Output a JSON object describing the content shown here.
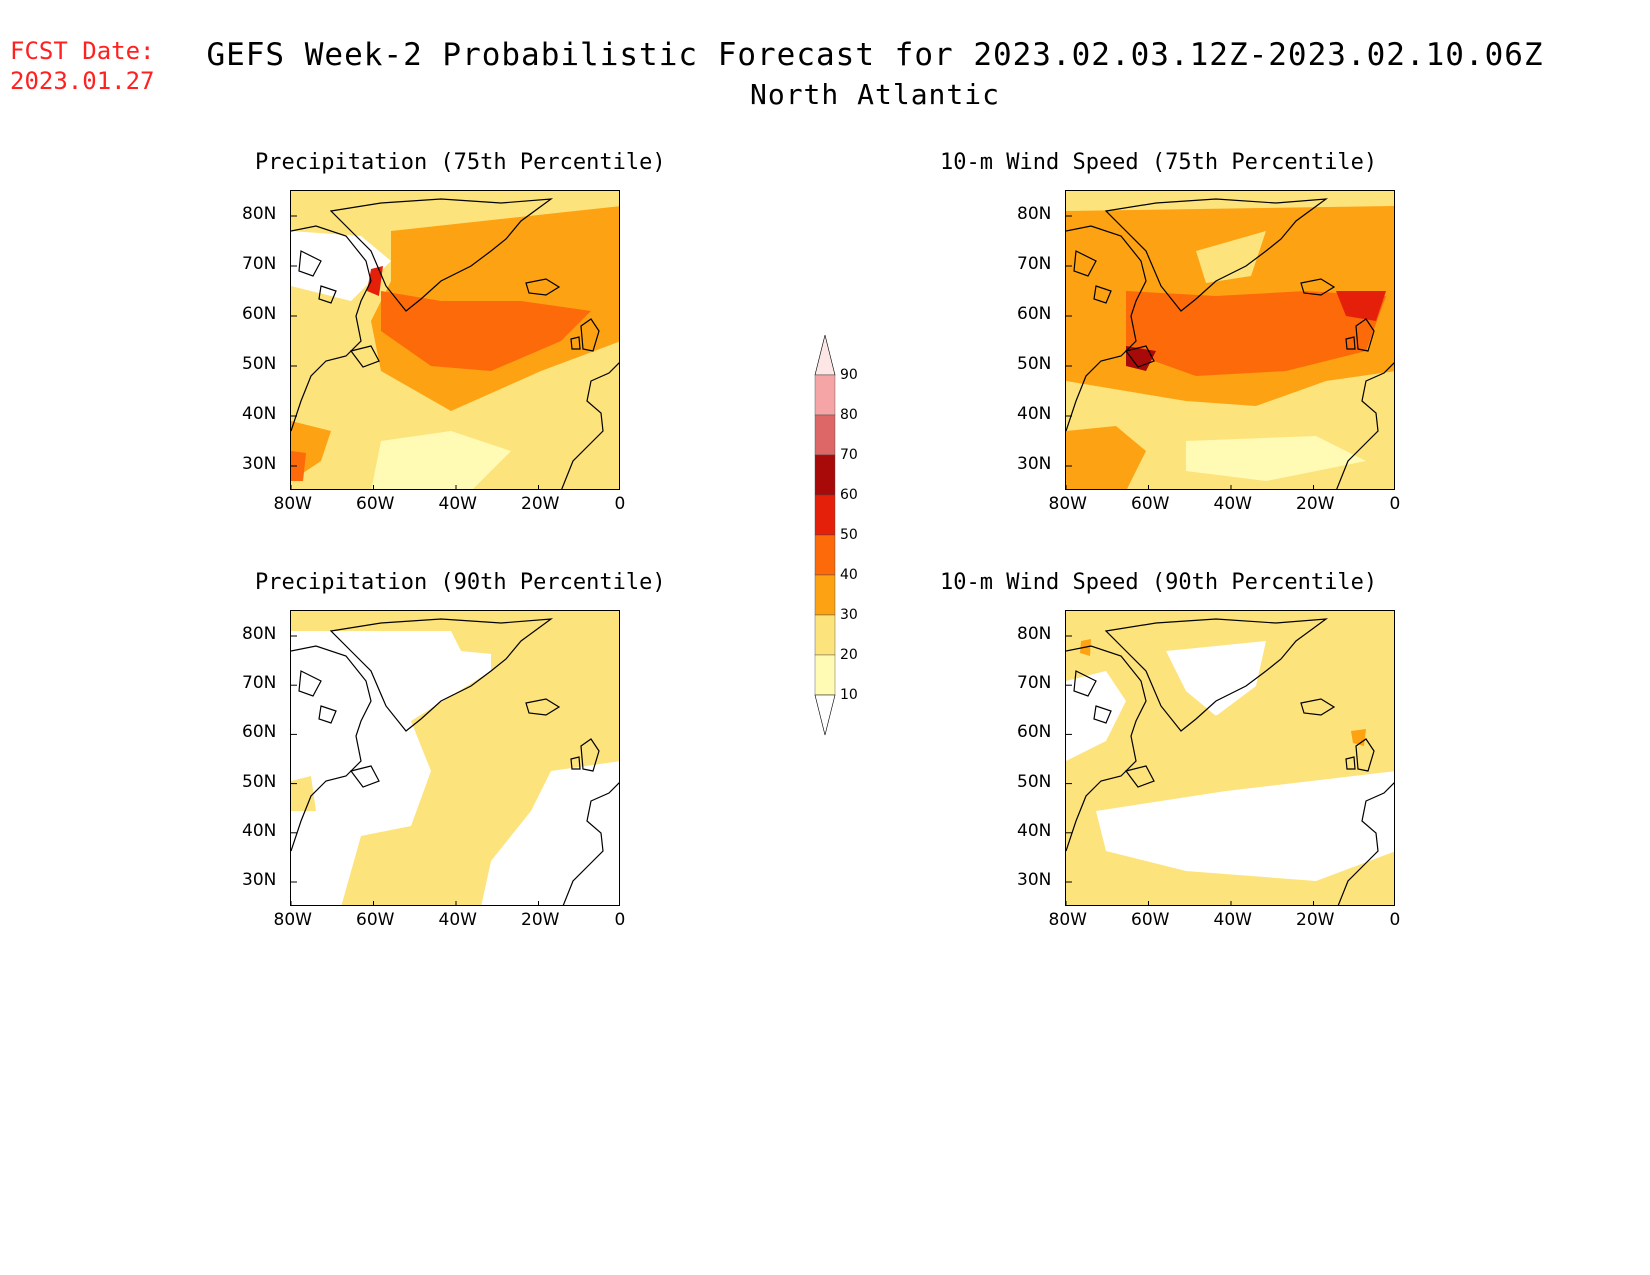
{
  "header": {
    "fcst_date_label": "FCST Date:",
    "fcst_date": "2023.01.27",
    "title": "GEFS Week-2 Probabilistic Forecast for 2023.02.03.12Z-2023.02.10.06Z",
    "region": "North Atlantic"
  },
  "panels": [
    {
      "title": "Precipitation (75th Percentile)",
      "intensity": "high-precip"
    },
    {
      "title": "10-m Wind Speed (75th Percentile)",
      "intensity": "high-wind"
    },
    {
      "title": "Precipitation (90th Percentile)",
      "intensity": "low-precip"
    },
    {
      "title": "10-m Wind Speed (90th Percentile)",
      "intensity": "low-wind"
    }
  ],
  "axes": {
    "lat_labels": [
      "80N",
      "70N",
      "60N",
      "50N",
      "40N",
      "30N"
    ],
    "lon_labels": [
      "80W",
      "60W",
      "40W",
      "20W",
      "0"
    ]
  },
  "colorbar": {
    "levels": [
      "10",
      "20",
      "30",
      "40",
      "50",
      "60",
      "70",
      "80",
      "90"
    ],
    "colors": [
      "#fffbb5",
      "#fde37c",
      "#fda212",
      "#fd6a09",
      "#e5200a",
      "#a80a0a",
      "#dd6767",
      "#f5a5a5",
      "#fde6e6"
    ]
  }
}
